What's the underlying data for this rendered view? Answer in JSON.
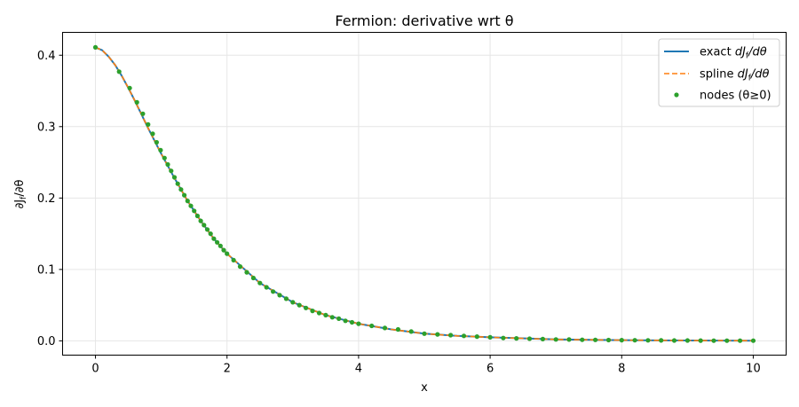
{
  "chart_data": {
    "type": "line",
    "title": "Fermion: derivative wrt θ",
    "xlabel": "x",
    "ylabel": "∂J_f/∂θ",
    "xlim": [
      -0.5,
      10.5
    ],
    "ylim": [
      -0.02,
      0.432
    ],
    "xticks": [
      0,
      2,
      4,
      6,
      8,
      10
    ],
    "xtick_labels": [
      "0",
      "2",
      "4",
      "6",
      "8",
      "10"
    ],
    "yticks": [
      0.0,
      0.1,
      0.2,
      0.3,
      0.4
    ],
    "ytick_labels": [
      "0.0",
      "0.1",
      "0.2",
      "0.3",
      "0.4"
    ],
    "grid": true,
    "legend_position": "top-right",
    "series": [
      {
        "name": "exact dJ_f/dθ",
        "style": "solid line",
        "color": "#1f77b4",
        "x": [
          0,
          0.1,
          0.2,
          0.3,
          0.4,
          0.5,
          0.6,
          0.8,
          1.0,
          1.2,
          1.4,
          1.6,
          1.8,
          2.0,
          2.5,
          3.0,
          3.5,
          4.0,
          4.5,
          5.0,
          5.5,
          6.0,
          7.0,
          8.0,
          9.0,
          10.0
        ],
        "y": [
          0.411,
          0.407,
          0.398,
          0.386,
          0.371,
          0.354,
          0.336,
          0.298,
          0.262,
          0.228,
          0.196,
          0.168,
          0.143,
          0.122,
          0.081,
          0.054,
          0.036,
          0.024,
          0.016,
          0.01,
          0.007,
          0.005,
          0.002,
          0.001,
          0.0005,
          0.0002
        ]
      },
      {
        "name": "spline dJ_f/dθ",
        "style": "dashed line",
        "color": "#ff7f0e",
        "x": [
          0,
          0.1,
          0.2,
          0.3,
          0.4,
          0.5,
          0.6,
          0.8,
          1.0,
          1.2,
          1.4,
          1.6,
          1.8,
          2.0,
          2.5,
          3.0,
          3.5,
          4.0,
          4.5,
          5.0,
          5.5,
          6.0,
          7.0,
          8.0,
          9.0,
          10.0
        ],
        "y": [
          0.411,
          0.407,
          0.398,
          0.386,
          0.371,
          0.354,
          0.336,
          0.298,
          0.262,
          0.228,
          0.196,
          0.168,
          0.143,
          0.122,
          0.081,
          0.054,
          0.036,
          0.024,
          0.016,
          0.01,
          0.007,
          0.005,
          0.002,
          0.001,
          0.0005,
          0.0002
        ]
      },
      {
        "name": "nodes (θ≥0)",
        "style": "markers",
        "color": "#2ca02c",
        "x": [
          0,
          0.36,
          0.52,
          0.63,
          0.72,
          0.8,
          0.87,
          0.93,
          0.99,
          1.05,
          1.1,
          1.15,
          1.2,
          1.25,
          1.3,
          1.35,
          1.4,
          1.45,
          1.5,
          1.55,
          1.6,
          1.65,
          1.7,
          1.75,
          1.8,
          1.85,
          1.9,
          1.95,
          2.0,
          2.1,
          2.2,
          2.3,
          2.4,
          2.5,
          2.6,
          2.7,
          2.8,
          2.9,
          3.0,
          3.1,
          3.2,
          3.3,
          3.4,
          3.5,
          3.6,
          3.7,
          3.8,
          3.9,
          4.0,
          4.2,
          4.4,
          4.6,
          4.8,
          5.0,
          5.2,
          5.4,
          5.6,
          5.8,
          6.0,
          6.2,
          6.4,
          6.6,
          6.8,
          7.0,
          7.2,
          7.4,
          7.6,
          7.8,
          8.0,
          8.2,
          8.4,
          8.6,
          8.8,
          9.0,
          9.2,
          9.4,
          9.6,
          9.8,
          10.0
        ],
        "y": [
          0.411,
          0.377,
          0.354,
          0.334,
          0.318,
          0.303,
          0.29,
          0.278,
          0.267,
          0.256,
          0.247,
          0.238,
          0.229,
          0.22,
          0.212,
          0.204,
          0.196,
          0.189,
          0.182,
          0.175,
          0.168,
          0.162,
          0.156,
          0.15,
          0.143,
          0.138,
          0.133,
          0.127,
          0.122,
          0.113,
          0.104,
          0.096,
          0.088,
          0.081,
          0.075,
          0.069,
          0.064,
          0.059,
          0.054,
          0.05,
          0.046,
          0.042,
          0.039,
          0.036,
          0.033,
          0.031,
          0.028,
          0.026,
          0.024,
          0.021,
          0.018,
          0.016,
          0.013,
          0.01,
          0.009,
          0.008,
          0.007,
          0.006,
          0.005,
          0.004,
          0.0035,
          0.003,
          0.0025,
          0.002,
          0.0018,
          0.0015,
          0.0013,
          0.0011,
          0.001,
          0.0008,
          0.0007,
          0.0006,
          0.0005,
          0.0005,
          0.0004,
          0.0003,
          0.0003,
          0.0002,
          0.0002
        ]
      }
    ],
    "legend": [
      "exact dJ_f/dθ",
      "spline dJ_f/dθ",
      "nodes (θ≥0)"
    ]
  }
}
